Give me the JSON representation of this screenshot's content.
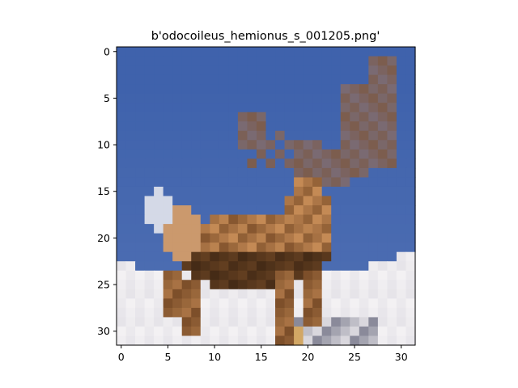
{
  "figure": {
    "title": "b'odocoileus_hemionus_s_001205.png'"
  },
  "image": {
    "content": "pixelated photograph of a mule deer with antlers standing on snow against a blue sky",
    "grid_size": [
      32,
      32
    ],
    "colors": {
      "sky": "#3f62ac",
      "sky_light": "#5a78b8",
      "snow": "#f3f1f3",
      "deer_dark": "#3a2412",
      "deer_mid": "#7d4f2a",
      "deer_light": "#c48a55",
      "antler": "#7a6a72",
      "frame": "#000000"
    }
  },
  "axes": {
    "x_ticks": [
      "0",
      "5",
      "10",
      "15",
      "20",
      "25",
      "30"
    ],
    "y_ticks": [
      "0",
      "5",
      "10",
      "15",
      "20",
      "25",
      "30"
    ]
  }
}
